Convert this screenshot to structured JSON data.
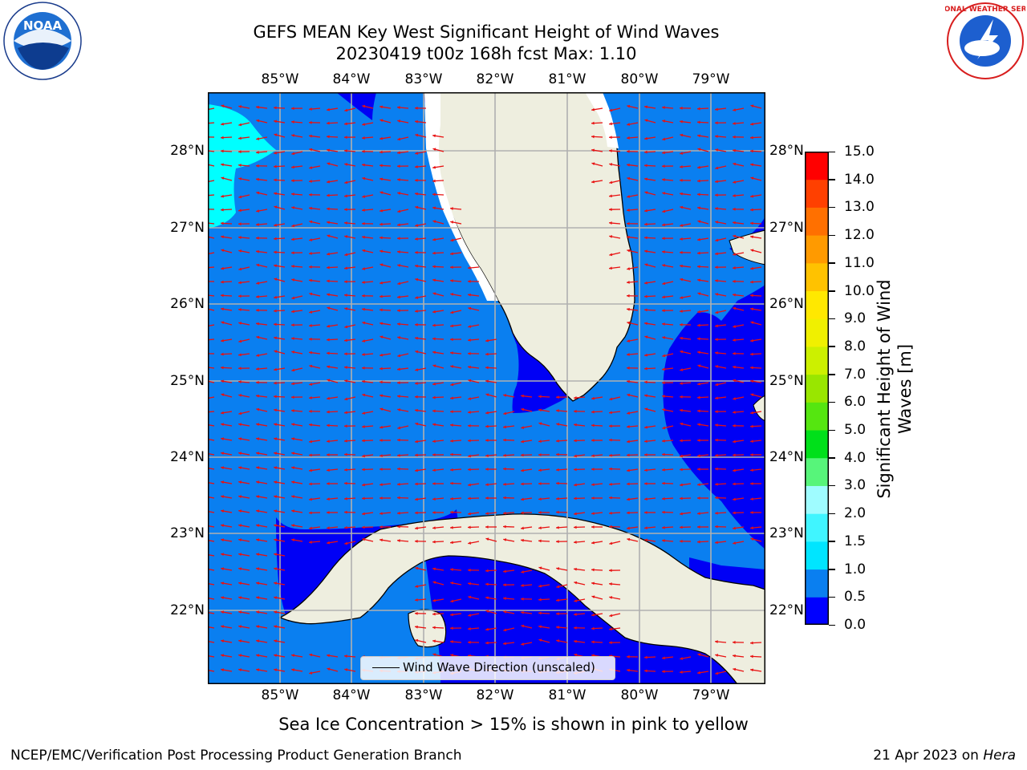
{
  "header": {
    "title_line1": "GEFS MEAN Key West Significant Height of Wind Waves",
    "title_line2": "20230419 t00z 168h fcst   Max: 1.10"
  },
  "logos": {
    "left": "noaa-logo",
    "right": "national-weather-service-logo",
    "left_text": "NOAA",
    "right_text": "NATIONAL WEATHER SERVICE"
  },
  "map": {
    "lon_labels": [
      "85°W",
      "84°W",
      "83°W",
      "82°W",
      "81°W",
      "80°W",
      "79°W"
    ],
    "lat_labels": [
      "28°N",
      "27°N",
      "26°N",
      "25°N",
      "24°N",
      "23°N",
      "22°N"
    ],
    "legend_text": "Wind Wave Direction (unscaled)",
    "colors": {
      "ocean_05_10": "#0a7ff0",
      "ocean_00_05": "#0000f5",
      "ocean_10_15": "#00ffff",
      "land": "#eeeedf",
      "arrows": "#e81010",
      "grid": "#b0b0b0"
    }
  },
  "colorbar": {
    "label": "Significant Height of Wind Waves [m]",
    "label_line1": "Significant Height of Wind",
    "label_line2": "Waves [m]",
    "ticks": [
      "0.0",
      "0.5",
      "1.0",
      "1.5",
      "2.0",
      "3.0",
      "4.0",
      "5.0",
      "6.0",
      "7.0",
      "8.0",
      "9.0",
      "10.0",
      "11.0",
      "12.0",
      "13.0",
      "14.0",
      "15.0"
    ],
    "colors": [
      "#0000ff",
      "#0a7ff0",
      "#00e5ff",
      "#40f5ff",
      "#9ffcff",
      "#57f57a",
      "#00e01a",
      "#55e610",
      "#99e600",
      "#ccf000",
      "#f0f000",
      "#ffe800",
      "#ffc200",
      "#ff9a00",
      "#ff7000",
      "#ff4000",
      "#ff0000"
    ]
  },
  "notes": {
    "sea_ice": "Sea Ice Concentration > 15% is shown in pink to yellow"
  },
  "footer": {
    "left": "NCEP/EMC/Verification Post Processing Product Generation Branch",
    "right_date": "21 Apr 2023 on ",
    "right_machine": "Hera"
  }
}
